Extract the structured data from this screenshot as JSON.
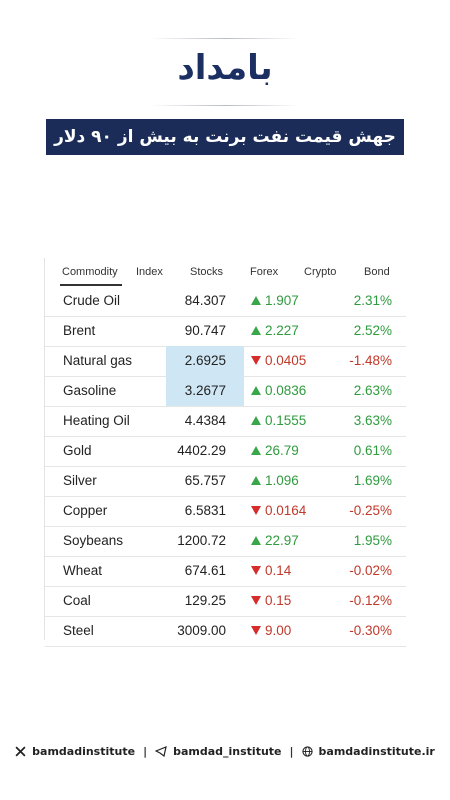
{
  "logo": "بامداد",
  "title": "جهش قیمت نفت برنت به بیش از ۹۰ دلار",
  "table": {
    "tabs": [
      "Commodity",
      "Index",
      "Stocks",
      "Forex",
      "Crypto",
      "Bond"
    ],
    "active_tab": 0,
    "rows": [
      {
        "name": "Crude Oil",
        "price": "84.307",
        "change": "1.907",
        "percent": "2.31%",
        "direction": "up"
      },
      {
        "name": "Brent",
        "price": "90.747",
        "change": "2.227",
        "percent": "2.52%",
        "direction": "up"
      },
      {
        "name": "Natural gas",
        "price": "2.6925",
        "change": "0.0405",
        "percent": "-1.48%",
        "direction": "down",
        "highlight": true
      },
      {
        "name": "Gasoline",
        "price": "3.2677",
        "change": "0.0836",
        "percent": "2.63%",
        "direction": "up",
        "highlight": true
      },
      {
        "name": "Heating Oil",
        "price": "4.4384",
        "change": "0.1555",
        "percent": "3.63%",
        "direction": "up"
      },
      {
        "name": "Gold",
        "price": "4402.29",
        "change": "26.79",
        "percent": "0.61%",
        "direction": "up"
      },
      {
        "name": "Silver",
        "price": "65.757",
        "change": "1.096",
        "percent": "1.69%",
        "direction": "up"
      },
      {
        "name": "Copper",
        "price": "6.5831",
        "change": "0.0164",
        "percent": "-0.25%",
        "direction": "down"
      },
      {
        "name": "Soybeans",
        "price": "1200.72",
        "change": "22.97",
        "percent": "1.95%",
        "direction": "up"
      },
      {
        "name": "Wheat",
        "price": "674.61",
        "change": "0.14",
        "percent": "-0.02%",
        "direction": "down"
      },
      {
        "name": "Coal",
        "price": "129.25",
        "change": "0.15",
        "percent": "-0.12%",
        "direction": "down"
      },
      {
        "name": "Steel",
        "price": "3009.00",
        "change": "9.00",
        "percent": "-0.30%",
        "direction": "down"
      }
    ]
  },
  "footer": [
    "bamdadinstitute",
    "bamdad_institute",
    "bamdadinstitute.ir"
  ]
}
